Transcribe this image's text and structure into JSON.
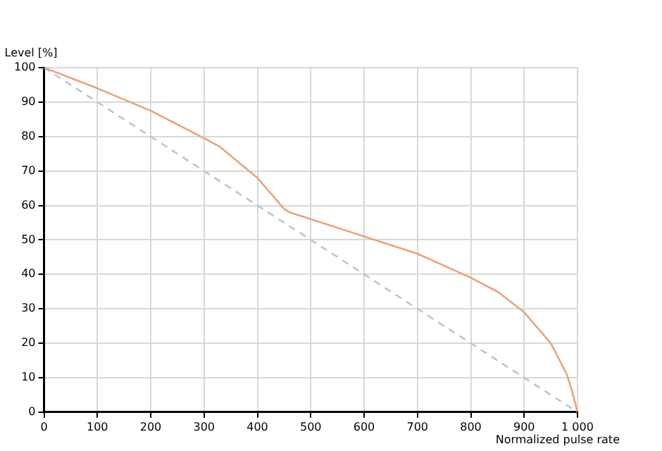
{
  "chart_data": {
    "type": "line",
    "xlabel": "Normalized pulse rate",
    "ylabel": "Level [%]",
    "xlim": [
      0,
      1000
    ],
    "ylim": [
      0,
      100
    ],
    "xticks": [
      0,
      100,
      200,
      300,
      400,
      500,
      600,
      700,
      800,
      900,
      {
        "value": 1000,
        "label": "1 000"
      }
    ],
    "yticks": [
      0,
      10,
      20,
      30,
      40,
      50,
      60,
      70,
      80,
      90,
      100
    ],
    "grid": true,
    "legend": false,
    "marker": "none",
    "series": [
      {
        "color": "#e8a47c",
        "line_style": "solid",
        "x": [
          0,
          100,
          200,
          300,
          330,
          400,
          450,
          460,
          500,
          600,
          700,
          800,
          850,
          900,
          950,
          980,
          990,
          1000
        ],
        "values": [
          100,
          94,
          87.5,
          79.5,
          77,
          68,
          59,
          58,
          56,
          51,
          46,
          39,
          35,
          29,
          20,
          11,
          6,
          0
        ]
      },
      {
        "color": "#b4c8d8",
        "line_style": "dashed",
        "x": [
          0,
          1000
        ],
        "values": [
          100,
          0
        ]
      }
    ]
  }
}
